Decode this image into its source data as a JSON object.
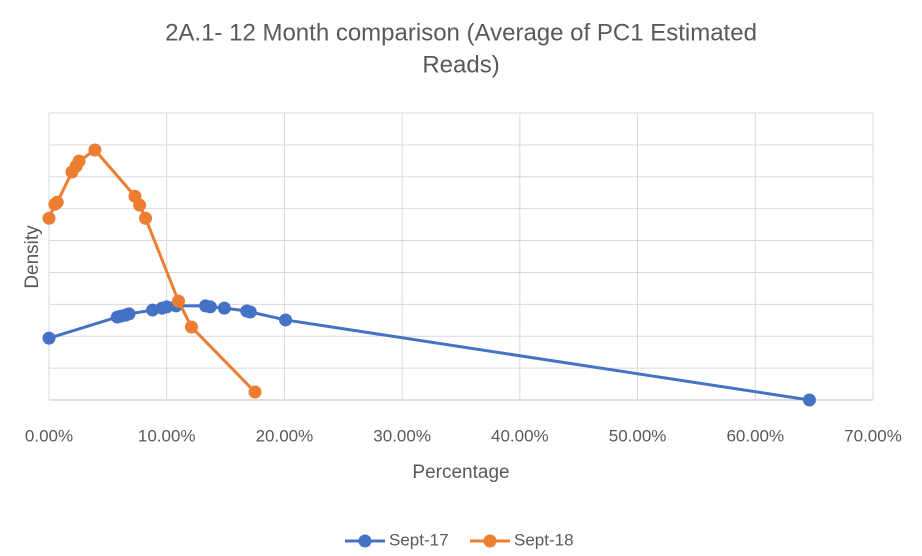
{
  "chart_data": {
    "type": "line",
    "title": "2A.1- 12 Month comparison (Average of PC1 Estimated Reads)",
    "x_label": "Percentage",
    "y_label": "Density",
    "series": [
      {
        "name": "Sept-17",
        "color": "#4472c4",
        "x": [
          0,
          5.8,
          6.1,
          6.5,
          6.8,
          8.8,
          9.6,
          10.0,
          10.8,
          13.3,
          13.7,
          14.9,
          16.8,
          17.1,
          20.1,
          64.6
        ],
        "values": [
          1.94,
          2.6,
          2.63,
          2.66,
          2.7,
          2.82,
          2.88,
          2.92,
          2.95,
          2.95,
          2.92,
          2.88,
          2.79,
          2.76,
          2.51,
          0
        ]
      },
      {
        "name": "Sept-18",
        "color": "#ed7d31",
        "x": [
          0,
          0.5,
          0.7,
          1.95,
          2.3,
          2.55,
          3.9,
          7.3,
          7.7,
          8.2,
          11.0,
          12.1,
          17.5
        ],
        "values": [
          5.7,
          6.14,
          6.2,
          7.15,
          7.33,
          7.49,
          7.84,
          6.39,
          6.11,
          5.7,
          3.1,
          2.29,
          0.25
        ]
      }
    ],
    "xlim": [
      0,
      70
    ],
    "xticks": [
      {
        "value": 0,
        "label": "0.00%"
      },
      {
        "value": 10,
        "label": "10.00%"
      },
      {
        "value": 20,
        "label": "20.00%"
      },
      {
        "value": 30,
        "label": "30.00%"
      },
      {
        "value": 40,
        "label": "40.00%"
      },
      {
        "value": 50,
        "label": "50.00%"
      },
      {
        "value": 60,
        "label": "60.00%"
      },
      {
        "value": 70,
        "label": "70.00%"
      }
    ],
    "ylim": [
      0,
      9
    ],
    "yticks": [
      0,
      1,
      2,
      3,
      4,
      5,
      6,
      7,
      8,
      9
    ],
    "grid": true,
    "legend": "bottom"
  }
}
